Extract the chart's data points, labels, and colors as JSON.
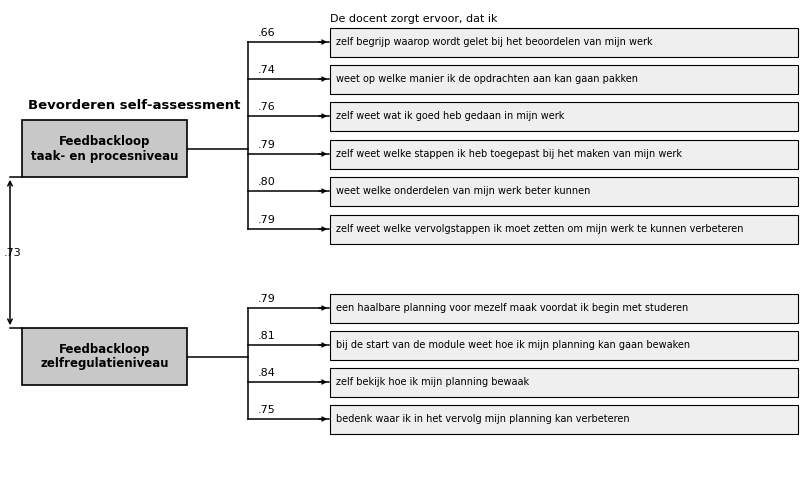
{
  "title": "De docent zorgt ervoor, dat ik",
  "main_construct": "Bevorderen self-assessment",
  "factor1_label": "Feedbackloop\ntaak- en procesniveau",
  "factor2_label": "Feedbackloop\nzelfregulatieniveau",
  "factor_correlation": ".73",
  "factor1_items": [
    {
      "coef": ".66",
      "text": "zelf begrijp waarop wordt gelet bij het beoordelen van mijn werk"
    },
    {
      "coef": ".74",
      "text": "weet op welke manier ik de opdrachten aan kan gaan pakken"
    },
    {
      "coef": ".76",
      "text": "zelf weet wat ik goed heb gedaan in mijn werk"
    },
    {
      "coef": ".79",
      "text": "zelf weet welke stappen ik heb toegepast bij het maken van mijn werk"
    },
    {
      "coef": ".80",
      "text": "weet welke onderdelen van mijn werk beter kunnen"
    },
    {
      "coef": ".79",
      "text": "zelf weet welke vervolgstappen ik moet zetten om mijn werk te kunnen verbeteren"
    }
  ],
  "factor2_items": [
    {
      "coef": ".79",
      "text": "een haalbare planning voor mezelf maak voordat ik begin met studeren"
    },
    {
      "coef": ".81",
      "text": "bij de start van de module weet hoe ik mijn planning kan gaan bewaken"
    },
    {
      "coef": ".84",
      "text": "zelf bekijk hoe ik mijn planning bewaak"
    },
    {
      "coef": ".75",
      "text": "bedenk waar ik in het vervolg mijn planning kan verbeteren"
    }
  ],
  "box_fill_factor": "#c8c8c8",
  "box_fill_item": "#efefef",
  "box_edge_color": "#000000",
  "bg_color": "#ffffff",
  "font_size_item": 7.0,
  "font_size_coef": 8.0,
  "font_size_factor": 8.5,
  "font_size_construct": 9.5,
  "font_size_title": 8.0
}
